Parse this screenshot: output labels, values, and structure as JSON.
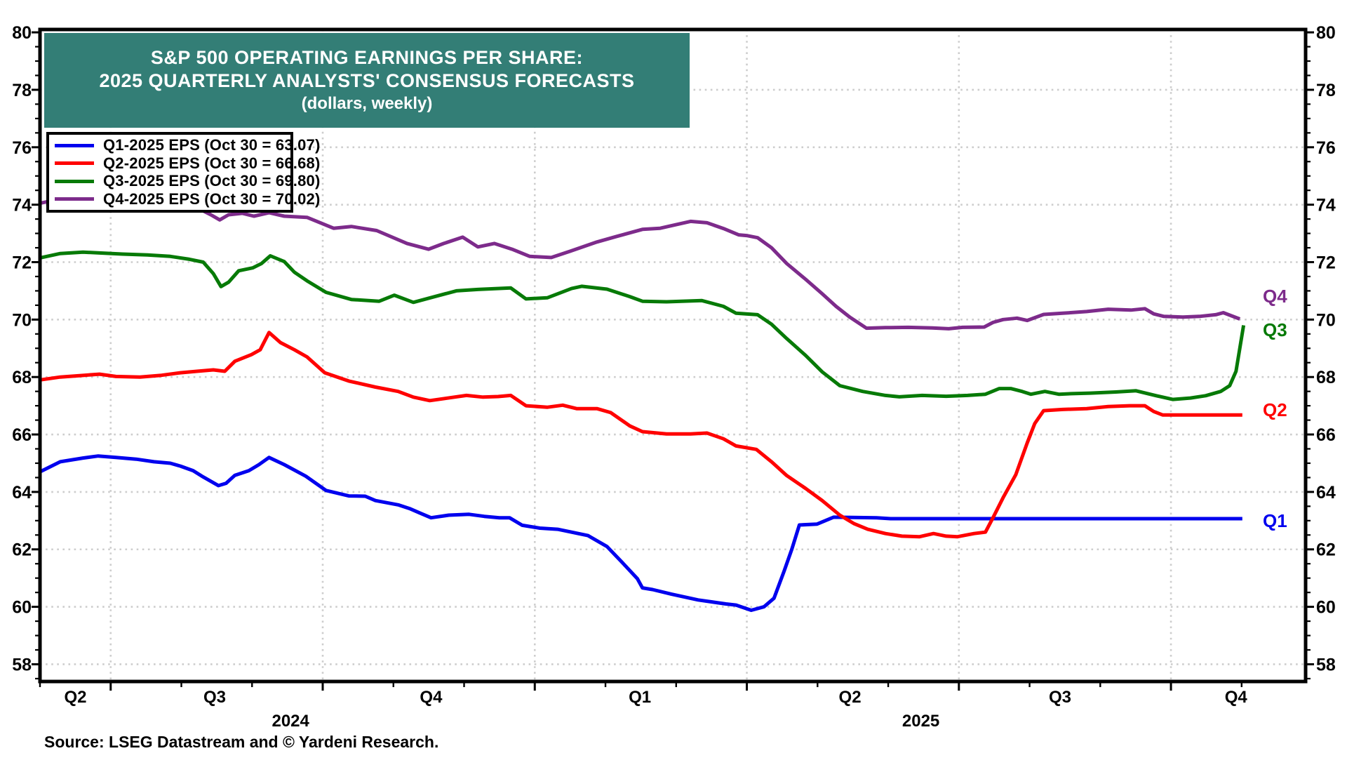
{
  "header": {
    "title_line1": "S&P 500 OPERATING EARNINGS PER SHARE:",
    "title_line2": "2025 QUARTERLY ANALYSTS' CONSENSUS FORECASTS",
    "title_line3": "(dollars, weekly)",
    "banner_color": "#337E76",
    "banner_text_color": "#FFFFFF"
  },
  "legend": {
    "items": [
      {
        "label": "Q1-2025 EPS (Oct 30 = 63.07)",
        "color": "#0000EE"
      },
      {
        "label": "Q2-2025 EPS (Oct 30 = 66.68)",
        "color": "#FF0000"
      },
      {
        "label": "Q3-2025 EPS (Oct 30 = 69.80)",
        "color": "#077A07"
      },
      {
        "label": "Q4-2025 EPS (Oct 30 = 70.02)",
        "color": "#7D2B8B"
      }
    ]
  },
  "source_note": "Source: LSEG Datastream and © Yardeni Research.",
  "chart_data": {
    "type": "line",
    "title": "S&P 500 Operating Earnings Per Share: 2025 Quarterly Analysts' Consensus Forecasts (dollars, weekly)",
    "ylabel": "",
    "xlabel": "",
    "ylim": [
      57.4,
      80.1
    ],
    "ytick_label_min": 58,
    "ytick_label_max": 80,
    "ytick_major_step": 2,
    "ytick_minor_step": 0.5,
    "grid_color": "#CDCDCD",
    "frame_color": "#000000",
    "month_tick_pct_start": 0.0,
    "month_tick_pct_step": 5.585,
    "month_tick_count": 18,
    "quarter_tick_month_offset": 1,
    "x_labels": [
      {
        "text": "Q2",
        "pct": 2.8
      },
      {
        "text": "Q3",
        "pct": 13.8
      },
      {
        "text": "Q4",
        "pct": 30.9
      },
      {
        "text": "Q1",
        "pct": 47.4
      },
      {
        "text": "Q2",
        "pct": 64.0
      },
      {
        "text": "Q3",
        "pct": 80.6
      },
      {
        "text": "Q4",
        "pct": 94.5
      }
    ],
    "year_labels": [
      {
        "text": "2024",
        "pct": 19.8
      },
      {
        "text": "2025",
        "pct": 69.6
      }
    ],
    "end_labels": [
      {
        "text": "Q4",
        "value": 70.8,
        "color": "#7D2B8B"
      },
      {
        "text": "Q3",
        "value": 69.62,
        "color": "#077A07"
      },
      {
        "text": "Q2",
        "value": 66.83,
        "color": "#FF0000"
      },
      {
        "text": "Q1",
        "value": 62.98,
        "color": "#0000EE"
      }
    ],
    "series": [
      {
        "name": "Q1-2025 EPS",
        "color": "#0000EE",
        "points": [
          [
            0.0,
            64.7
          ],
          [
            1.6,
            65.05
          ],
          [
            3.4,
            65.18
          ],
          [
            4.6,
            65.25
          ],
          [
            6.0,
            65.2
          ],
          [
            7.6,
            65.14
          ],
          [
            9.0,
            65.05
          ],
          [
            10.3,
            65.0
          ],
          [
            11.1,
            64.9
          ],
          [
            12.1,
            64.74
          ],
          [
            12.9,
            64.52
          ],
          [
            14.1,
            64.22
          ],
          [
            14.7,
            64.3
          ],
          [
            15.4,
            64.58
          ],
          [
            16.5,
            64.74
          ],
          [
            17.3,
            64.95
          ],
          [
            18.1,
            65.2
          ],
          [
            19.3,
            64.95
          ],
          [
            21.0,
            64.55
          ],
          [
            22.6,
            64.05
          ],
          [
            24.4,
            63.86
          ],
          [
            25.7,
            63.85
          ],
          [
            26.5,
            63.7
          ],
          [
            28.3,
            63.55
          ],
          [
            29.2,
            63.42
          ],
          [
            30.0,
            63.27
          ],
          [
            30.9,
            63.1
          ],
          [
            32.3,
            63.19
          ],
          [
            33.9,
            63.22
          ],
          [
            35.1,
            63.15
          ],
          [
            36.3,
            63.1
          ],
          [
            37.1,
            63.1
          ],
          [
            38.1,
            62.84
          ],
          [
            39.5,
            62.74
          ],
          [
            40.9,
            62.7
          ],
          [
            42.0,
            62.6
          ],
          [
            43.3,
            62.48
          ],
          [
            44.8,
            62.1
          ],
          [
            46.1,
            61.5
          ],
          [
            47.2,
            60.98
          ],
          [
            47.6,
            60.66
          ],
          [
            48.4,
            60.6
          ],
          [
            49.9,
            60.44
          ],
          [
            52.0,
            60.24
          ],
          [
            54.2,
            60.1
          ],
          [
            55.0,
            60.06
          ],
          [
            56.2,
            59.88
          ],
          [
            57.2,
            60.0
          ],
          [
            58.0,
            60.3
          ],
          [
            58.8,
            61.25
          ],
          [
            59.4,
            62.0
          ],
          [
            60.0,
            62.85
          ],
          [
            61.4,
            62.88
          ],
          [
            62.7,
            63.12
          ],
          [
            66.1,
            63.1
          ],
          [
            67.2,
            63.07
          ],
          [
            95.0,
            63.07
          ]
        ]
      },
      {
        "name": "Q2-2025 EPS",
        "color": "#FF0000",
        "points": [
          [
            0.0,
            67.9
          ],
          [
            1.6,
            68.0
          ],
          [
            3.5,
            68.06
          ],
          [
            4.7,
            68.1
          ],
          [
            6.0,
            68.02
          ],
          [
            7.9,
            68.0
          ],
          [
            9.6,
            68.06
          ],
          [
            11.1,
            68.15
          ],
          [
            12.4,
            68.2
          ],
          [
            13.7,
            68.25
          ],
          [
            14.6,
            68.2
          ],
          [
            15.4,
            68.55
          ],
          [
            16.7,
            68.78
          ],
          [
            17.4,
            68.95
          ],
          [
            18.1,
            69.55
          ],
          [
            19.0,
            69.2
          ],
          [
            20.1,
            68.95
          ],
          [
            21.1,
            68.7
          ],
          [
            22.5,
            68.15
          ],
          [
            24.4,
            67.86
          ],
          [
            26.5,
            67.65
          ],
          [
            28.3,
            67.5
          ],
          [
            29.5,
            67.3
          ],
          [
            30.8,
            67.18
          ],
          [
            32.4,
            67.28
          ],
          [
            33.7,
            67.36
          ],
          [
            35.0,
            67.3
          ],
          [
            36.2,
            67.32
          ],
          [
            37.2,
            67.36
          ],
          [
            38.4,
            67.0
          ],
          [
            40.1,
            66.95
          ],
          [
            41.3,
            67.02
          ],
          [
            42.4,
            66.9
          ],
          [
            44.0,
            66.9
          ],
          [
            45.1,
            66.76
          ],
          [
            46.6,
            66.3
          ],
          [
            47.6,
            66.1
          ],
          [
            49.5,
            66.02
          ],
          [
            51.4,
            66.02
          ],
          [
            52.7,
            66.05
          ],
          [
            54.0,
            65.85
          ],
          [
            55.0,
            65.6
          ],
          [
            56.6,
            65.48
          ],
          [
            57.8,
            65.05
          ],
          [
            59.0,
            64.57
          ],
          [
            60.5,
            64.12
          ],
          [
            61.8,
            63.7
          ],
          [
            63.2,
            63.19
          ],
          [
            64.3,
            62.9
          ],
          [
            65.4,
            62.7
          ],
          [
            66.8,
            62.55
          ],
          [
            68.1,
            62.46
          ],
          [
            69.5,
            62.44
          ],
          [
            70.6,
            62.55
          ],
          [
            71.6,
            62.46
          ],
          [
            72.5,
            62.44
          ],
          [
            73.8,
            62.55
          ],
          [
            74.7,
            62.6
          ],
          [
            75.3,
            63.1
          ],
          [
            76.1,
            63.8
          ],
          [
            77.1,
            64.6
          ],
          [
            78.0,
            65.7
          ],
          [
            78.6,
            66.38
          ],
          [
            79.3,
            66.83
          ],
          [
            80.8,
            66.87
          ],
          [
            82.7,
            66.9
          ],
          [
            84.4,
            66.97
          ],
          [
            86.1,
            67.0
          ],
          [
            87.3,
            67.0
          ],
          [
            88.0,
            66.8
          ],
          [
            88.7,
            66.68
          ],
          [
            95.0,
            66.68
          ]
        ]
      },
      {
        "name": "Q3-2025 EPS",
        "color": "#077A07",
        "points": [
          [
            0.0,
            72.15
          ],
          [
            1.6,
            72.3
          ],
          [
            3.4,
            72.35
          ],
          [
            4.7,
            72.32
          ],
          [
            6.5,
            72.28
          ],
          [
            8.5,
            72.25
          ],
          [
            10.3,
            72.2
          ],
          [
            11.8,
            72.1
          ],
          [
            12.9,
            72.0
          ],
          [
            13.7,
            71.6
          ],
          [
            14.3,
            71.15
          ],
          [
            14.9,
            71.3
          ],
          [
            15.7,
            71.7
          ],
          [
            16.8,
            71.8
          ],
          [
            17.5,
            71.95
          ],
          [
            18.2,
            72.22
          ],
          [
            19.3,
            72.02
          ],
          [
            20.1,
            71.65
          ],
          [
            21.1,
            71.35
          ],
          [
            22.6,
            70.95
          ],
          [
            24.6,
            70.7
          ],
          [
            26.8,
            70.64
          ],
          [
            28.0,
            70.85
          ],
          [
            29.5,
            70.6
          ],
          [
            31.2,
            70.8
          ],
          [
            32.9,
            71.0
          ],
          [
            34.6,
            71.05
          ],
          [
            37.2,
            71.1
          ],
          [
            38.4,
            70.72
          ],
          [
            40.1,
            70.76
          ],
          [
            42.0,
            71.08
          ],
          [
            42.8,
            71.16
          ],
          [
            44.8,
            71.06
          ],
          [
            46.6,
            70.8
          ],
          [
            47.6,
            70.64
          ],
          [
            49.5,
            70.62
          ],
          [
            52.3,
            70.66
          ],
          [
            54.0,
            70.46
          ],
          [
            55.0,
            70.22
          ],
          [
            56.7,
            70.17
          ],
          [
            57.8,
            69.84
          ],
          [
            59.0,
            69.34
          ],
          [
            60.5,
            68.75
          ],
          [
            61.8,
            68.18
          ],
          [
            63.2,
            67.7
          ],
          [
            65.0,
            67.5
          ],
          [
            66.8,
            67.36
          ],
          [
            67.9,
            67.31
          ],
          [
            69.7,
            67.36
          ],
          [
            71.6,
            67.33
          ],
          [
            73.3,
            67.36
          ],
          [
            74.7,
            67.4
          ],
          [
            75.8,
            67.6
          ],
          [
            76.7,
            67.6
          ],
          [
            77.6,
            67.5
          ],
          [
            78.3,
            67.4
          ],
          [
            79.4,
            67.5
          ],
          [
            80.5,
            67.4
          ],
          [
            81.5,
            67.42
          ],
          [
            83.0,
            67.44
          ],
          [
            85.0,
            67.48
          ],
          [
            86.6,
            67.52
          ],
          [
            88.2,
            67.35
          ],
          [
            89.5,
            67.22
          ],
          [
            90.9,
            67.27
          ],
          [
            92.1,
            67.35
          ],
          [
            93.3,
            67.5
          ],
          [
            94.0,
            67.7
          ],
          [
            94.5,
            68.2
          ],
          [
            94.8,
            69.0
          ],
          [
            95.1,
            69.8
          ]
        ]
      },
      {
        "name": "Q4-2025 EPS",
        "color": "#7D2B8B",
        "points": [
          [
            0.0,
            74.05
          ],
          [
            1.6,
            74.2
          ],
          [
            3.5,
            74.3
          ],
          [
            5.2,
            74.35
          ],
          [
            7.4,
            74.3
          ],
          [
            9.6,
            74.15
          ],
          [
            11.4,
            74.0
          ],
          [
            12.6,
            73.85
          ],
          [
            13.5,
            73.65
          ],
          [
            14.2,
            73.47
          ],
          [
            14.9,
            73.65
          ],
          [
            16.0,
            73.7
          ],
          [
            16.9,
            73.6
          ],
          [
            18.1,
            73.72
          ],
          [
            19.3,
            73.6
          ],
          [
            21.1,
            73.56
          ],
          [
            23.2,
            73.18
          ],
          [
            24.6,
            73.24
          ],
          [
            26.6,
            73.1
          ],
          [
            29.0,
            72.65
          ],
          [
            30.7,
            72.45
          ],
          [
            31.9,
            72.65
          ],
          [
            33.4,
            72.87
          ],
          [
            34.6,
            72.53
          ],
          [
            35.9,
            72.65
          ],
          [
            37.3,
            72.45
          ],
          [
            38.7,
            72.2
          ],
          [
            40.4,
            72.16
          ],
          [
            41.9,
            72.38
          ],
          [
            44.0,
            72.7
          ],
          [
            45.6,
            72.9
          ],
          [
            47.6,
            73.14
          ],
          [
            49.0,
            73.18
          ],
          [
            50.2,
            73.3
          ],
          [
            51.4,
            73.42
          ],
          [
            52.7,
            73.37
          ],
          [
            54.0,
            73.17
          ],
          [
            55.2,
            72.95
          ],
          [
            55.9,
            72.92
          ],
          [
            56.7,
            72.85
          ],
          [
            57.8,
            72.5
          ],
          [
            59.0,
            71.95
          ],
          [
            60.5,
            71.4
          ],
          [
            61.8,
            70.9
          ],
          [
            62.9,
            70.46
          ],
          [
            64.0,
            70.08
          ],
          [
            65.3,
            69.7
          ],
          [
            66.8,
            69.72
          ],
          [
            68.6,
            69.73
          ],
          [
            70.5,
            69.71
          ],
          [
            71.8,
            69.68
          ],
          [
            72.9,
            69.73
          ],
          [
            74.6,
            69.74
          ],
          [
            75.3,
            69.9
          ],
          [
            76.1,
            70.0
          ],
          [
            77.2,
            70.05
          ],
          [
            78.0,
            69.97
          ],
          [
            79.3,
            70.18
          ],
          [
            80.8,
            70.22
          ],
          [
            82.7,
            70.28
          ],
          [
            84.4,
            70.36
          ],
          [
            86.2,
            70.33
          ],
          [
            87.3,
            70.38
          ],
          [
            88.0,
            70.2
          ],
          [
            88.8,
            70.11
          ],
          [
            90.3,
            70.09
          ],
          [
            91.6,
            70.11
          ],
          [
            92.9,
            70.17
          ],
          [
            93.5,
            70.24
          ],
          [
            94.8,
            70.02
          ]
        ]
      }
    ]
  }
}
